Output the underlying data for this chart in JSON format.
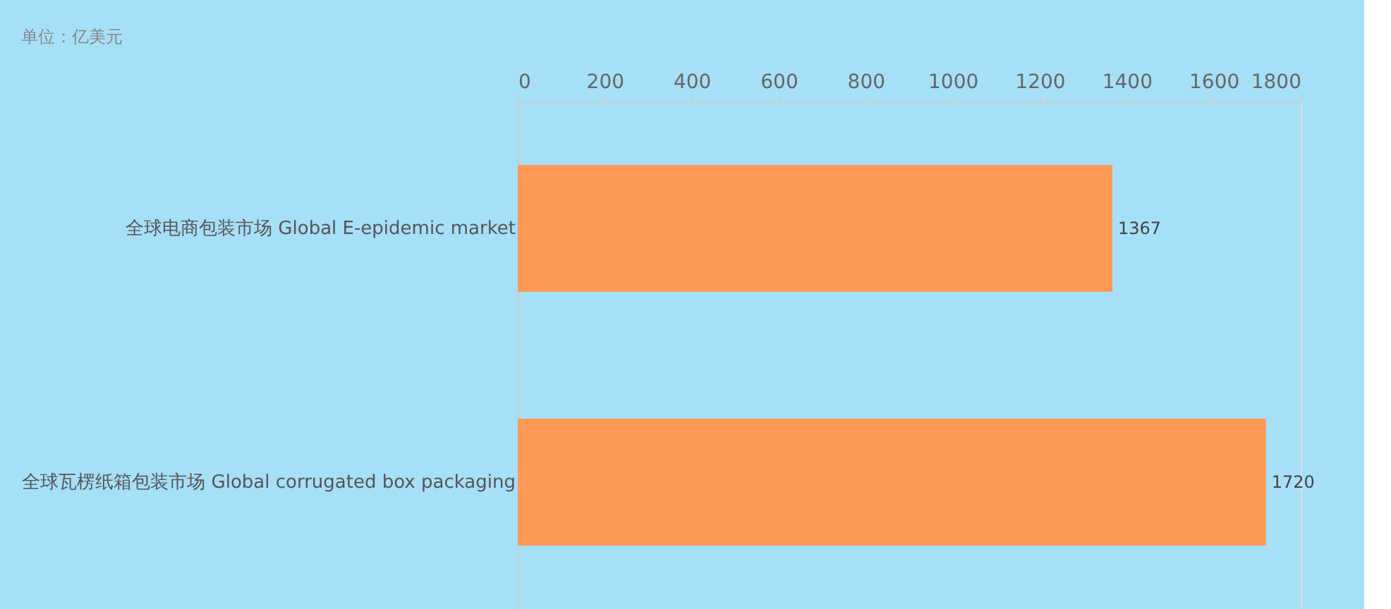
{
  "chart_data": {
    "type": "bar",
    "orientation": "horizontal",
    "title": "单位：亿美元",
    "categories": [
      "全球电商包装市场 Global E-epidemic market",
      "全球瓦楞纸箱包装市场 Global corrugated box packaging"
    ],
    "values": [
      1367,
      1720
    ],
    "color": "#ff9955",
    "xlim": [
      0,
      1800
    ],
    "xticks": [
      0,
      200,
      400,
      600,
      800,
      1000,
      1200,
      1400,
      1600,
      1800
    ],
    "grid": false,
    "data_labels": true
  }
}
